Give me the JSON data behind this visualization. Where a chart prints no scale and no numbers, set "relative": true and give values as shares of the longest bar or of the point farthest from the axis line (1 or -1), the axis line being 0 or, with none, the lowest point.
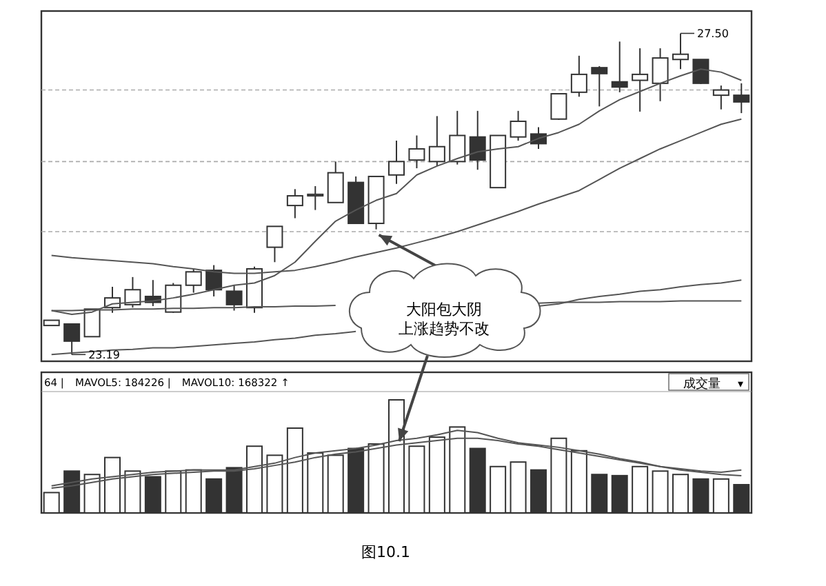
{
  "chart_data": [
    {
      "type": "candlestick",
      "categories": [
        null,
        null,
        null,
        null,
        null,
        null,
        null,
        null,
        null,
        null,
        null,
        null,
        null,
        null,
        null,
        null,
        null,
        null,
        null,
        null,
        null,
        null,
        null,
        null,
        null,
        null,
        null,
        null,
        null,
        null,
        null,
        null,
        null,
        null,
        null
      ],
      "ohlc": [
        [
          23.58,
          23.65,
          23.58,
          23.65
        ],
        [
          23.6,
          23.6,
          23.19,
          23.37
        ],
        [
          23.43,
          23.8,
          23.43,
          23.8
        ],
        [
          23.82,
          24.1,
          23.75,
          23.95
        ],
        [
          23.86,
          24.23,
          23.82,
          24.06
        ],
        [
          23.97,
          24.19,
          23.84,
          23.89
        ],
        [
          23.76,
          24.15,
          23.75,
          24.12
        ],
        [
          24.12,
          24.34,
          24.02,
          24.3
        ],
        [
          24.32,
          24.39,
          23.97,
          24.06
        ],
        [
          24.04,
          24.12,
          23.78,
          23.86
        ],
        [
          23.82,
          24.37,
          23.75,
          24.34
        ],
        [
          24.63,
          24.91,
          24.43,
          24.91
        ],
        [
          25.19,
          25.41,
          25.02,
          25.32
        ],
        [
          25.32,
          25.45,
          25.13,
          25.34
        ],
        [
          25.23,
          25.78,
          25.23,
          25.63
        ],
        [
          25.5,
          25.58,
          24.95,
          24.95
        ],
        [
          24.95,
          25.58,
          24.87,
          25.58
        ],
        [
          25.6,
          26.06,
          25.48,
          25.78
        ],
        [
          25.8,
          26.13,
          25.69,
          25.95
        ],
        [
          25.78,
          26.39,
          25.72,
          25.98
        ],
        [
          25.78,
          26.46,
          25.74,
          26.13
        ],
        [
          26.11,
          26.46,
          25.67,
          25.8
        ],
        [
          25.43,
          26.13,
          25.43,
          26.13
        ],
        [
          26.11,
          26.46,
          26.06,
          26.32
        ],
        [
          26.15,
          26.24,
          25.95,
          26.02
        ],
        [
          26.35,
          26.69,
          26.34,
          26.69
        ],
        [
          26.71,
          27.2,
          26.65,
          26.95
        ],
        [
          27.04,
          27.06,
          26.52,
          26.96
        ],
        [
          26.85,
          27.39,
          26.71,
          26.78
        ],
        [
          26.87,
          27.3,
          26.45,
          26.95
        ],
        [
          26.83,
          27.3,
          26.59,
          27.17
        ],
        [
          27.15,
          27.5,
          27.02,
          27.22
        ],
        [
          27.15,
          27.15,
          26.82,
          26.83
        ],
        [
          26.67,
          26.8,
          26.48,
          26.74
        ],
        [
          26.67,
          26.83,
          26.43,
          26.58
        ]
      ],
      "colors": [
        "#ffffff",
        "#333333",
        "#ffffff",
        "#ffffff",
        "#ffffff",
        "#333333",
        "#ffffff",
        "#ffffff",
        "#333333",
        "#333333",
        "#ffffff",
        "#ffffff",
        "#ffffff",
        "#ffffff",
        "#ffffff",
        "#333333",
        "#ffffff",
        "#ffffff",
        "#ffffff",
        "#ffffff",
        "#ffffff",
        "#333333",
        "#ffffff",
        "#ffffff",
        "#333333",
        "#ffffff",
        "#ffffff",
        "#333333",
        "#333333",
        "#ffffff",
        "#ffffff",
        "#ffffff",
        "#333333",
        "#ffffff",
        "#333333"
      ],
      "series": [
        {
          "type": "line",
          "color": "#555555",
          "values": [
            23.78,
            23.73,
            23.76,
            23.87,
            23.89,
            23.91,
            23.95,
            24.0,
            24.06,
            24.12,
            24.15,
            24.25,
            24.43,
            24.71,
            24.98,
            25.13,
            25.26,
            25.35,
            25.6,
            25.72,
            25.82,
            25.91,
            25.95,
            25.98,
            26.09,
            26.17,
            26.28,
            26.46,
            26.61,
            26.72,
            26.83,
            26.93,
            27.02,
            26.98,
            26.87
          ]
        },
        {
          "type": "line",
          "color": "#555555",
          "values": [
            24.52,
            24.49,
            24.47,
            24.45,
            24.43,
            24.41,
            24.37,
            24.34,
            24.3,
            24.28,
            24.28,
            24.3,
            24.32,
            24.37,
            24.43,
            24.5,
            24.56,
            24.62,
            24.69,
            24.76,
            24.84,
            24.93,
            25.02,
            25.11,
            25.21,
            25.3,
            25.39,
            25.54,
            25.69,
            25.82,
            25.95,
            26.06,
            26.17,
            26.28,
            26.35
          ]
        },
        {
          "type": "line",
          "color": "#555555",
          "values": [
            23.19,
            23.21,
            23.23,
            23.25,
            23.26,
            23.28,
            23.28,
            23.3,
            23.32,
            23.34,
            23.36,
            23.39,
            23.41,
            23.45,
            23.47,
            23.5,
            null,
            null,
            null,
            null,
            null,
            null,
            null,
            null,
            23.84,
            23.87,
            23.93,
            23.97,
            24.0,
            24.04,
            24.06,
            24.1,
            24.13,
            24.15,
            24.19
          ]
        },
        {
          "type": "line",
          "color": "#555555",
          "values": [
            23.78,
            23.78,
            23.79,
            23.79,
            23.8,
            23.8,
            23.81,
            23.81,
            23.82,
            23.82,
            23.83,
            23.83,
            23.84,
            23.84,
            23.85,
            null,
            null,
            null,
            null,
            null,
            null,
            null,
            null,
            null,
            23.88,
            23.89,
            23.89,
            23.89,
            23.9,
            23.9,
            23.9,
            23.91,
            23.91,
            23.91,
            23.91
          ]
        }
      ],
      "ylim": [
        23.1,
        27.8
      ],
      "yticks": [
        {
          "value": 24.84,
          "label": null
        },
        {
          "value": 25.78,
          "label": null
        },
        {
          "value": 26.74,
          "label": null
        }
      ],
      "grid": "y",
      "annotations": [
        {
          "text": "23.19",
          "y": 23.19
        },
        "27.50",
        "大阳包大阴",
        "上涨趋势不改"
      ]
    },
    {
      "type": "bar",
      "relative": true,
      "categories": [
        null,
        null,
        null,
        null,
        null,
        null,
        null,
        null,
        null,
        null,
        null,
        null,
        null,
        null,
        null,
        null,
        null,
        null,
        null,
        null,
        null,
        null,
        null,
        null,
        null,
        null,
        null,
        null,
        null,
        null,
        null,
        null,
        null,
        null,
        null
      ],
      "series": [
        {
          "type": "bar",
          "colors": [
            "#ffffff",
            "#333333",
            "#ffffff",
            "#ffffff",
            "#ffffff",
            "#333333",
            "#ffffff",
            "#ffffff",
            "#333333",
            "#333333",
            "#ffffff",
            "#ffffff",
            "#ffffff",
            "#ffffff",
            "#ffffff",
            "#333333",
            "#ffffff",
            "#ffffff",
            "#ffffff",
            "#ffffff",
            "#ffffff",
            "#333333",
            "#ffffff",
            "#ffffff",
            "#333333",
            "#ffffff",
            "#ffffff",
            "#333333",
            "#333333",
            "#ffffff",
            "#ffffff",
            "#ffffff",
            "#333333",
            "#ffffff",
            "#333333"
          ],
          "values": [
            0.18,
            0.37,
            0.34,
            0.49,
            0.37,
            0.32,
            0.37,
            0.38,
            0.3,
            0.4,
            0.59,
            0.51,
            0.75,
            0.53,
            0.51,
            0.57,
            0.61,
            1,
            0.59,
            0.67,
            0.76,
            0.57,
            0.41,
            0.45,
            0.38,
            0.66,
            0.55,
            0.34,
            0.33,
            0.41,
            0.37,
            0.34,
            0.3,
            0.3,
            0.25
          ]
        },
        {
          "type": "line",
          "color": "#555555",
          "values": [
            0.24,
            0.27,
            0.3,
            0.32,
            0.34,
            0.36,
            0.37,
            0.38,
            0.38,
            0.38,
            0.41,
            0.44,
            0.49,
            0.53,
            0.55,
            0.57,
            0.6,
            0.64,
            0.66,
            0.69,
            0.73,
            0.71,
            0.66,
            0.62,
            0.6,
            0.58,
            0.55,
            0.52,
            0.48,
            0.45,
            0.41,
            0.39,
            0.37,
            0.36,
            0.38
          ]
        },
        {
          "type": "line",
          "color": "#555555",
          "values": [
            0.22,
            0.24,
            0.27,
            0.3,
            0.32,
            0.34,
            0.35,
            0.36,
            0.37,
            0.37,
            0.39,
            0.42,
            0.45,
            0.49,
            0.52,
            0.54,
            0.57,
            0.6,
            0.62,
            0.64,
            0.66,
            0.66,
            0.64,
            0.61,
            0.59,
            0.56,
            0.53,
            0.5,
            0.47,
            0.44,
            0.41,
            0.38,
            0.36,
            0.34,
            0.33
          ]
        }
      ],
      "annotations": [
        "64 |",
        "MAVOL5: 184226 |",
        "MAVOL10: 168322 ↑",
        "成交量",
        "▾",
        "图10.1"
      ]
    }
  ]
}
